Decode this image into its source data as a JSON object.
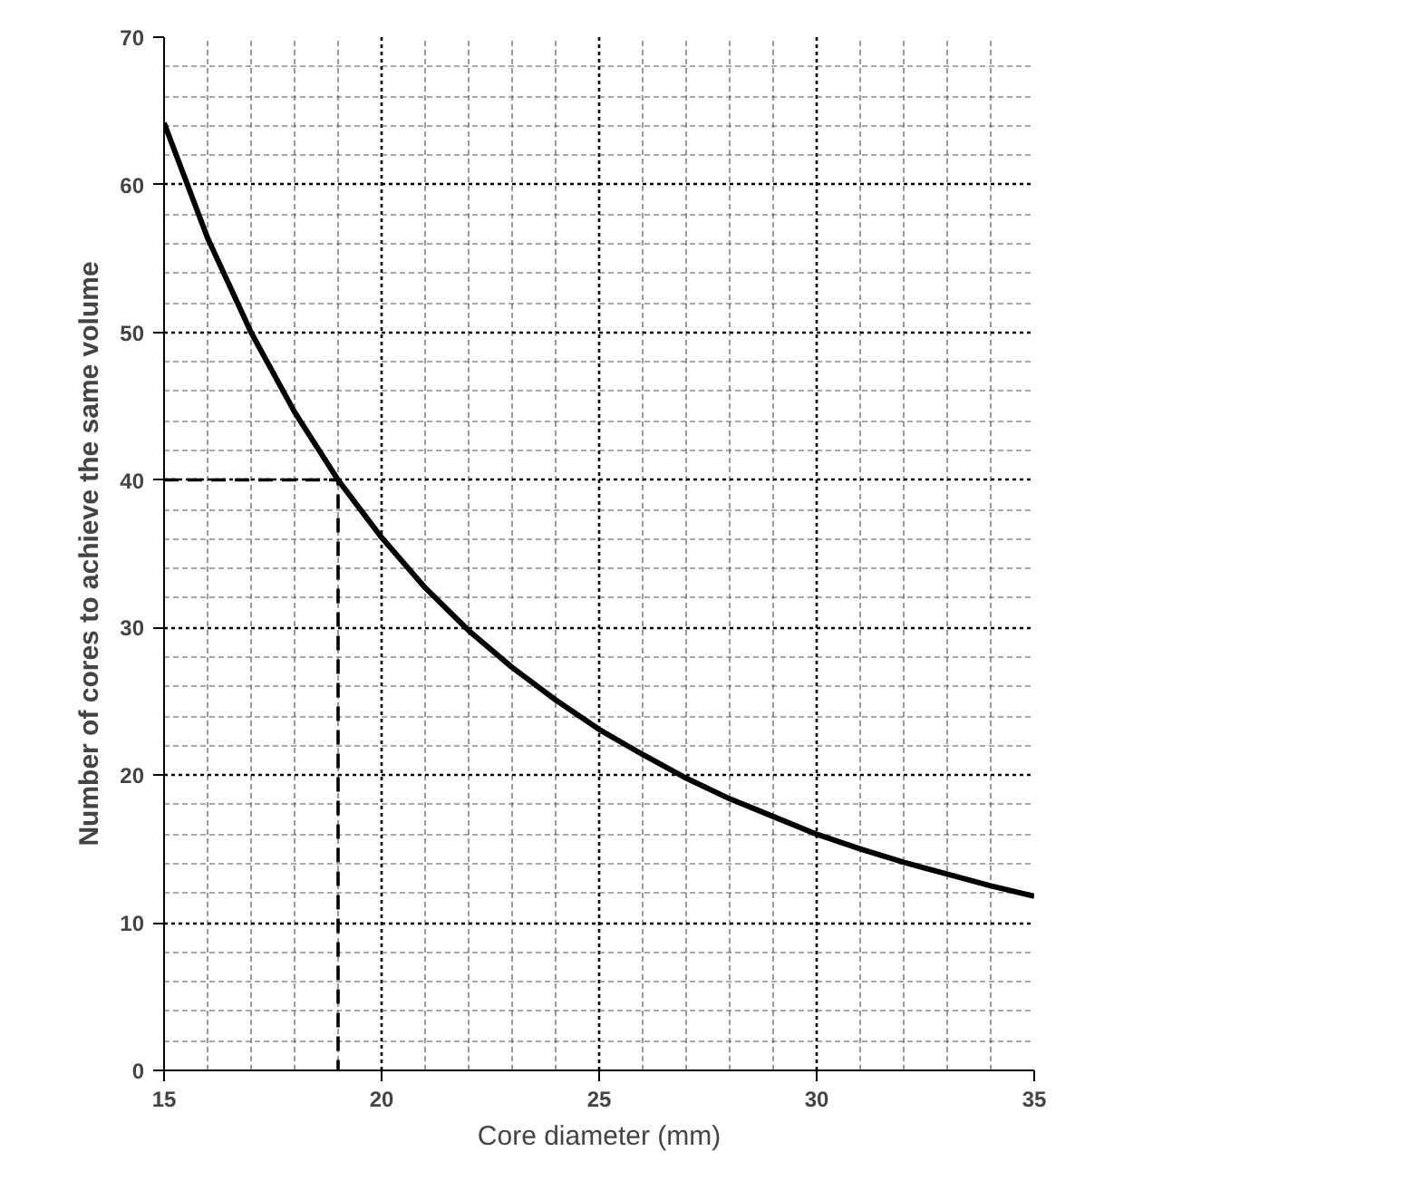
{
  "chart_data": {
    "type": "line",
    "xlabel": "Core diameter (mm)",
    "ylabel": "Number of cores to achieve the same volume",
    "xlim": [
      15,
      35
    ],
    "ylim": [
      0,
      70
    ],
    "xticks": [
      15,
      20,
      25,
      30,
      35
    ],
    "yticks": [
      0,
      10,
      20,
      30,
      40,
      50,
      60,
      70
    ],
    "grid": true,
    "series": [
      {
        "color": "#000000",
        "line_style": "solid",
        "x": [
          15,
          16,
          17,
          18,
          19,
          20,
          21,
          22,
          23,
          24,
          25,
          26,
          27,
          28,
          29,
          30,
          31,
          32,
          33,
          34,
          35
        ],
        "values": [
          64.2,
          56.4,
          50.0,
          44.6,
          40.0,
          36.1,
          32.7,
          29.8,
          27.3,
          25.1,
          23.1,
          21.4,
          19.8,
          18.4,
          17.2,
          16.0,
          15.0,
          14.1,
          13.3,
          12.5,
          11.8
        ]
      },
      {
        "color": "#000000",
        "line_style": "dashed",
        "x": [
          15,
          19,
          19
        ],
        "values": [
          40,
          40,
          0
        ]
      }
    ]
  }
}
